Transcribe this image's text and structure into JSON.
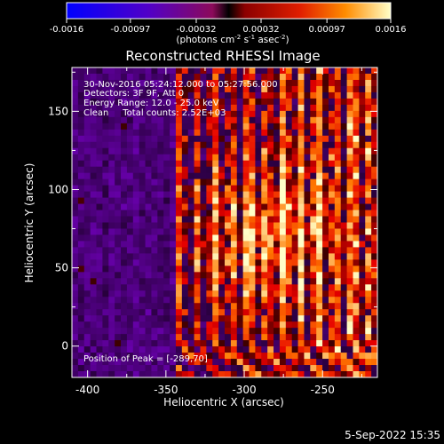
{
  "chart_data": {
    "type": "heatmap",
    "title": "Reconstructed RHESSI Image",
    "xlabel": "Heliocentric X (arcsec)",
    "ylabel": "Heliocentric Y (arcsec)",
    "xlim": [
      -410,
      -215
    ],
    "ylim": [
      -20,
      178
    ],
    "xticks": [
      -400,
      -350,
      -300,
      -250
    ],
    "yticks": [
      0,
      50,
      100,
      150
    ],
    "colorbar": {
      "min": -0.0016,
      "max": 0.0016,
      "ticks": [
        -0.0016,
        -0.00097,
        -0.00032,
        0.00032,
        0.00097,
        0.0016
      ],
      "tick_labels": [
        "-0.0016",
        "-0.00097",
        "-0.00032",
        "0.00032",
        "0.00097",
        "0.0016"
      ],
      "unit_html": "(photons cm<tspan baseline-shift=\"super\" font-size=\"7\">-2</tspan> s<tspan baseline-shift=\"super\" font-size=\"7\">-1</tspan> asec<tspan baseline-shift=\"super\" font-size=\"7\">-2</tspan>)"
    },
    "annotations": [
      "30-Nov-2016 05:24:12.000 to 05:27:56.000",
      "Detectors: 3F 9F, Att 0",
      "Energy Range: 12.0 - 25.0 keV",
      "Clean     Total counts: 2.52E+03"
    ],
    "peak_label": "Position of Peak = [-289,70]",
    "peak": [
      -289,
      70
    ]
  },
  "footer": {
    "timestamp": "5-Sep-2022 15:35"
  },
  "colors": {
    "background": "#000000",
    "foreground": "#ffffff"
  }
}
